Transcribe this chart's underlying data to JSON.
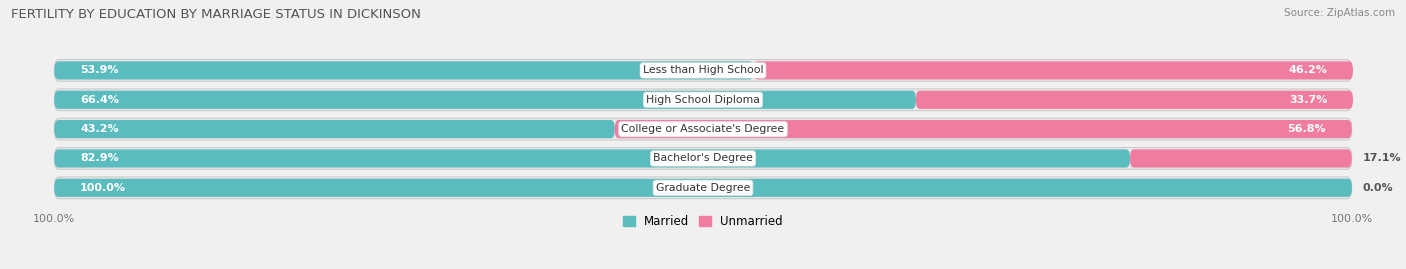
{
  "title": "FERTILITY BY EDUCATION BY MARRIAGE STATUS IN DICKINSON",
  "source": "Source: ZipAtlas.com",
  "categories": [
    "Less than High School",
    "High School Diploma",
    "College or Associate's Degree",
    "Bachelor's Degree",
    "Graduate Degree"
  ],
  "married": [
    53.9,
    66.4,
    43.2,
    82.9,
    100.0
  ],
  "unmarried": [
    46.2,
    33.7,
    56.8,
    17.1,
    0.0
  ],
  "married_color": "#5bbcbf",
  "unmarried_color": "#f07ca0",
  "unmarried_color_light": "#f5b8ce",
  "bg_color": "#f0f0f0",
  "pill_bg": "#e8e8e8",
  "pill_border": "#d0d0d0",
  "label_bg": "#ffffff",
  "title_fontsize": 9.5,
  "bar_height": 0.62,
  "xlim": [
    0,
    100
  ]
}
